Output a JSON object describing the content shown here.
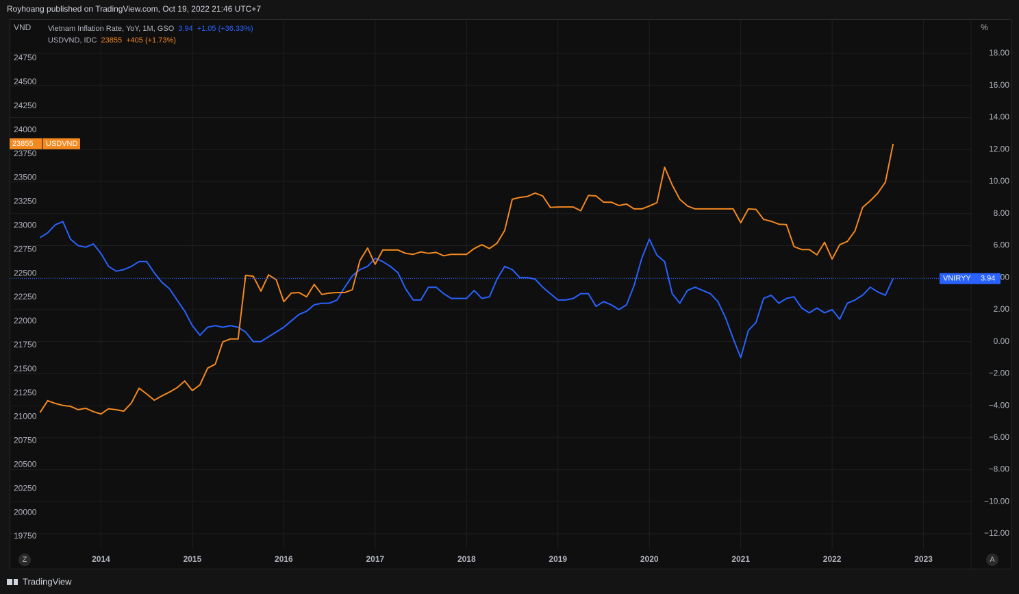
{
  "header": {
    "text": "Royhoang published on TradingView.com, Oct 19, 2022 21:46 UTC+7"
  },
  "footer": {
    "brand": "TradingView"
  },
  "controls": {
    "left": "Z",
    "right": "A"
  },
  "chart_data": {
    "type": "line",
    "ylabel": "VND",
    "y2label": "%",
    "x": [
      2013.333,
      2013.417,
      2013.5,
      2013.583,
      2013.667,
      2013.75,
      2013.833,
      2013.917,
      2014,
      2014.083,
      2014.167,
      2014.25,
      2014.333,
      2014.417,
      2014.5,
      2014.583,
      2014.667,
      2014.75,
      2014.833,
      2014.917,
      2015,
      2015.083,
      2015.167,
      2015.25,
      2015.333,
      2015.417,
      2015.5,
      2015.583,
      2015.667,
      2015.75,
      2015.833,
      2015.917,
      2016,
      2016.083,
      2016.167,
      2016.25,
      2016.333,
      2016.417,
      2016.5,
      2016.583,
      2016.667,
      2016.75,
      2016.833,
      2016.917,
      2017,
      2017.083,
      2017.167,
      2017.25,
      2017.333,
      2017.417,
      2017.5,
      2017.583,
      2017.667,
      2017.75,
      2017.833,
      2017.917,
      2018,
      2018.083,
      2018.167,
      2018.25,
      2018.333,
      2018.417,
      2018.5,
      2018.583,
      2018.667,
      2018.75,
      2018.833,
      2018.917,
      2019,
      2019.083,
      2019.167,
      2019.25,
      2019.333,
      2019.417,
      2019.5,
      2019.583,
      2019.667,
      2019.75,
      2019.833,
      2019.917,
      2020,
      2020.083,
      2020.167,
      2020.25,
      2020.333,
      2020.417,
      2020.5,
      2020.583,
      2020.667,
      2020.75,
      2020.833,
      2020.917,
      2021,
      2021.083,
      2021.167,
      2021.25,
      2021.333,
      2021.417,
      2021.5,
      2021.583,
      2021.667,
      2021.75,
      2021.833,
      2021.917,
      2022,
      2022.083,
      2022.167,
      2022.25,
      2022.333,
      2022.417,
      2022.5,
      2022.583,
      2022.667
    ],
    "series": [
      {
        "name": "Vietnam Inflation Rate, YoY, 1M, GSO",
        "tag": "VNIRYY",
        "change": "+1.05 (+36.33%)",
        "color": "#2962ff",
        "axis": "y2",
        "values": [
          6.5,
          6.8,
          7.3,
          7.5,
          6.4,
          6.0,
          5.9,
          6.1,
          5.5,
          4.7,
          4.4,
          4.5,
          4.7,
          5.0,
          5.0,
          4.3,
          3.7,
          3.3,
          2.6,
          1.9,
          1.0,
          0.4,
          0.9,
          1.0,
          0.9,
          1.0,
          0.9,
          0.6,
          0.0,
          0.0,
          0.3,
          0.6,
          0.9,
          1.3,
          1.7,
          1.9,
          2.3,
          2.4,
          2.4,
          2.6,
          3.4,
          4.1,
          4.5,
          4.7,
          5.2,
          5.0,
          4.7,
          4.3,
          3.3,
          2.6,
          2.6,
          3.4,
          3.4,
          3.0,
          2.7,
          2.7,
          2.7,
          3.2,
          2.7,
          2.8,
          3.9,
          4.7,
          4.5,
          4.0,
          4.0,
          3.9,
          3.4,
          3.0,
          2.6,
          2.6,
          2.7,
          3.0,
          3.0,
          2.2,
          2.5,
          2.3,
          2.0,
          2.3,
          3.5,
          5.2,
          6.4,
          5.4,
          5.0,
          3.0,
          2.4,
          3.2,
          3.4,
          3.2,
          3.0,
          2.5,
          1.5,
          0.2,
          -1.0,
          0.7,
          1.2,
          2.7,
          2.9,
          2.4,
          2.7,
          2.8,
          2.1,
          1.8,
          2.1,
          1.8,
          2.0,
          1.4,
          2.4,
          2.6,
          2.9,
          3.4,
          3.1,
          2.9,
          3.94
        ]
      },
      {
        "name": "USDVND, IDC",
        "tag": "USDVND",
        "change": "+405 (+1.73%)",
        "color": "#f4891f",
        "axis": "y",
        "values": [
          21045,
          21170,
          21140,
          21120,
          21110,
          21075,
          21090,
          21055,
          21030,
          21085,
          21075,
          21060,
          21145,
          21300,
          21240,
          21175,
          21220,
          21260,
          21305,
          21375,
          21275,
          21335,
          21510,
          21550,
          21785,
          21815,
          21815,
          22480,
          22470,
          22315,
          22485,
          22435,
          22205,
          22295,
          22300,
          22255,
          22385,
          22280,
          22295,
          22300,
          22300,
          22330,
          22635,
          22765,
          22595,
          22745,
          22745,
          22745,
          22710,
          22700,
          22725,
          22710,
          22720,
          22685,
          22700,
          22700,
          22700,
          22760,
          22800,
          22760,
          22815,
          22950,
          23275,
          23295,
          23305,
          23340,
          23310,
          23190,
          23195,
          23195,
          23195,
          23155,
          23315,
          23310,
          23245,
          23245,
          23210,
          23225,
          23175,
          23175,
          23205,
          23240,
          23610,
          23425,
          23275,
          23205,
          23175,
          23175,
          23175,
          23175,
          23175,
          23175,
          23030,
          23175,
          23170,
          23065,
          23045,
          23015,
          23010,
          22780,
          22750,
          22750,
          22695,
          22825,
          22650,
          22800,
          22835,
          22945,
          23190,
          23260,
          23340,
          23455,
          23855
        ]
      }
    ],
    "xlim": [
      2013.0,
      2023.52
    ],
    "xticks": [
      2014,
      2015,
      2016,
      2017,
      2018,
      2019,
      2020,
      2021,
      2022,
      2023
    ],
    "ylim": [
      19621,
      25151
    ],
    "yticks": [
      19750,
      20000,
      20250,
      20500,
      20750,
      21000,
      21250,
      21500,
      21750,
      22000,
      22250,
      22500,
      22750,
      23000,
      23250,
      23500,
      23750,
      24000,
      24250,
      24500,
      24750
    ],
    "y2lim": [
      -12.94,
      20.1
    ],
    "y2ticks": [
      {
        "value": -12,
        "label": "−12.00"
      },
      {
        "value": -10,
        "label": "−10.00"
      },
      {
        "value": -8,
        "label": "−8.00"
      },
      {
        "value": -6,
        "label": "−6.00"
      },
      {
        "value": -4,
        "label": "−4.00"
      },
      {
        "value": -2,
        "label": "−2.00"
      },
      {
        "value": 0,
        "label": "0.00"
      },
      {
        "value": 2,
        "label": "2.00"
      },
      {
        "value": 4,
        "label": "4.00"
      },
      {
        "value": 6,
        "label": "6.00"
      },
      {
        "value": 8,
        "label": "8.00"
      },
      {
        "value": 10,
        "label": "10.00"
      },
      {
        "value": 12,
        "label": "12.00"
      },
      {
        "value": 14,
        "label": "14.00"
      },
      {
        "value": 16,
        "label": "16.00"
      },
      {
        "value": 18,
        "label": "18.00"
      }
    ],
    "grid": true
  }
}
